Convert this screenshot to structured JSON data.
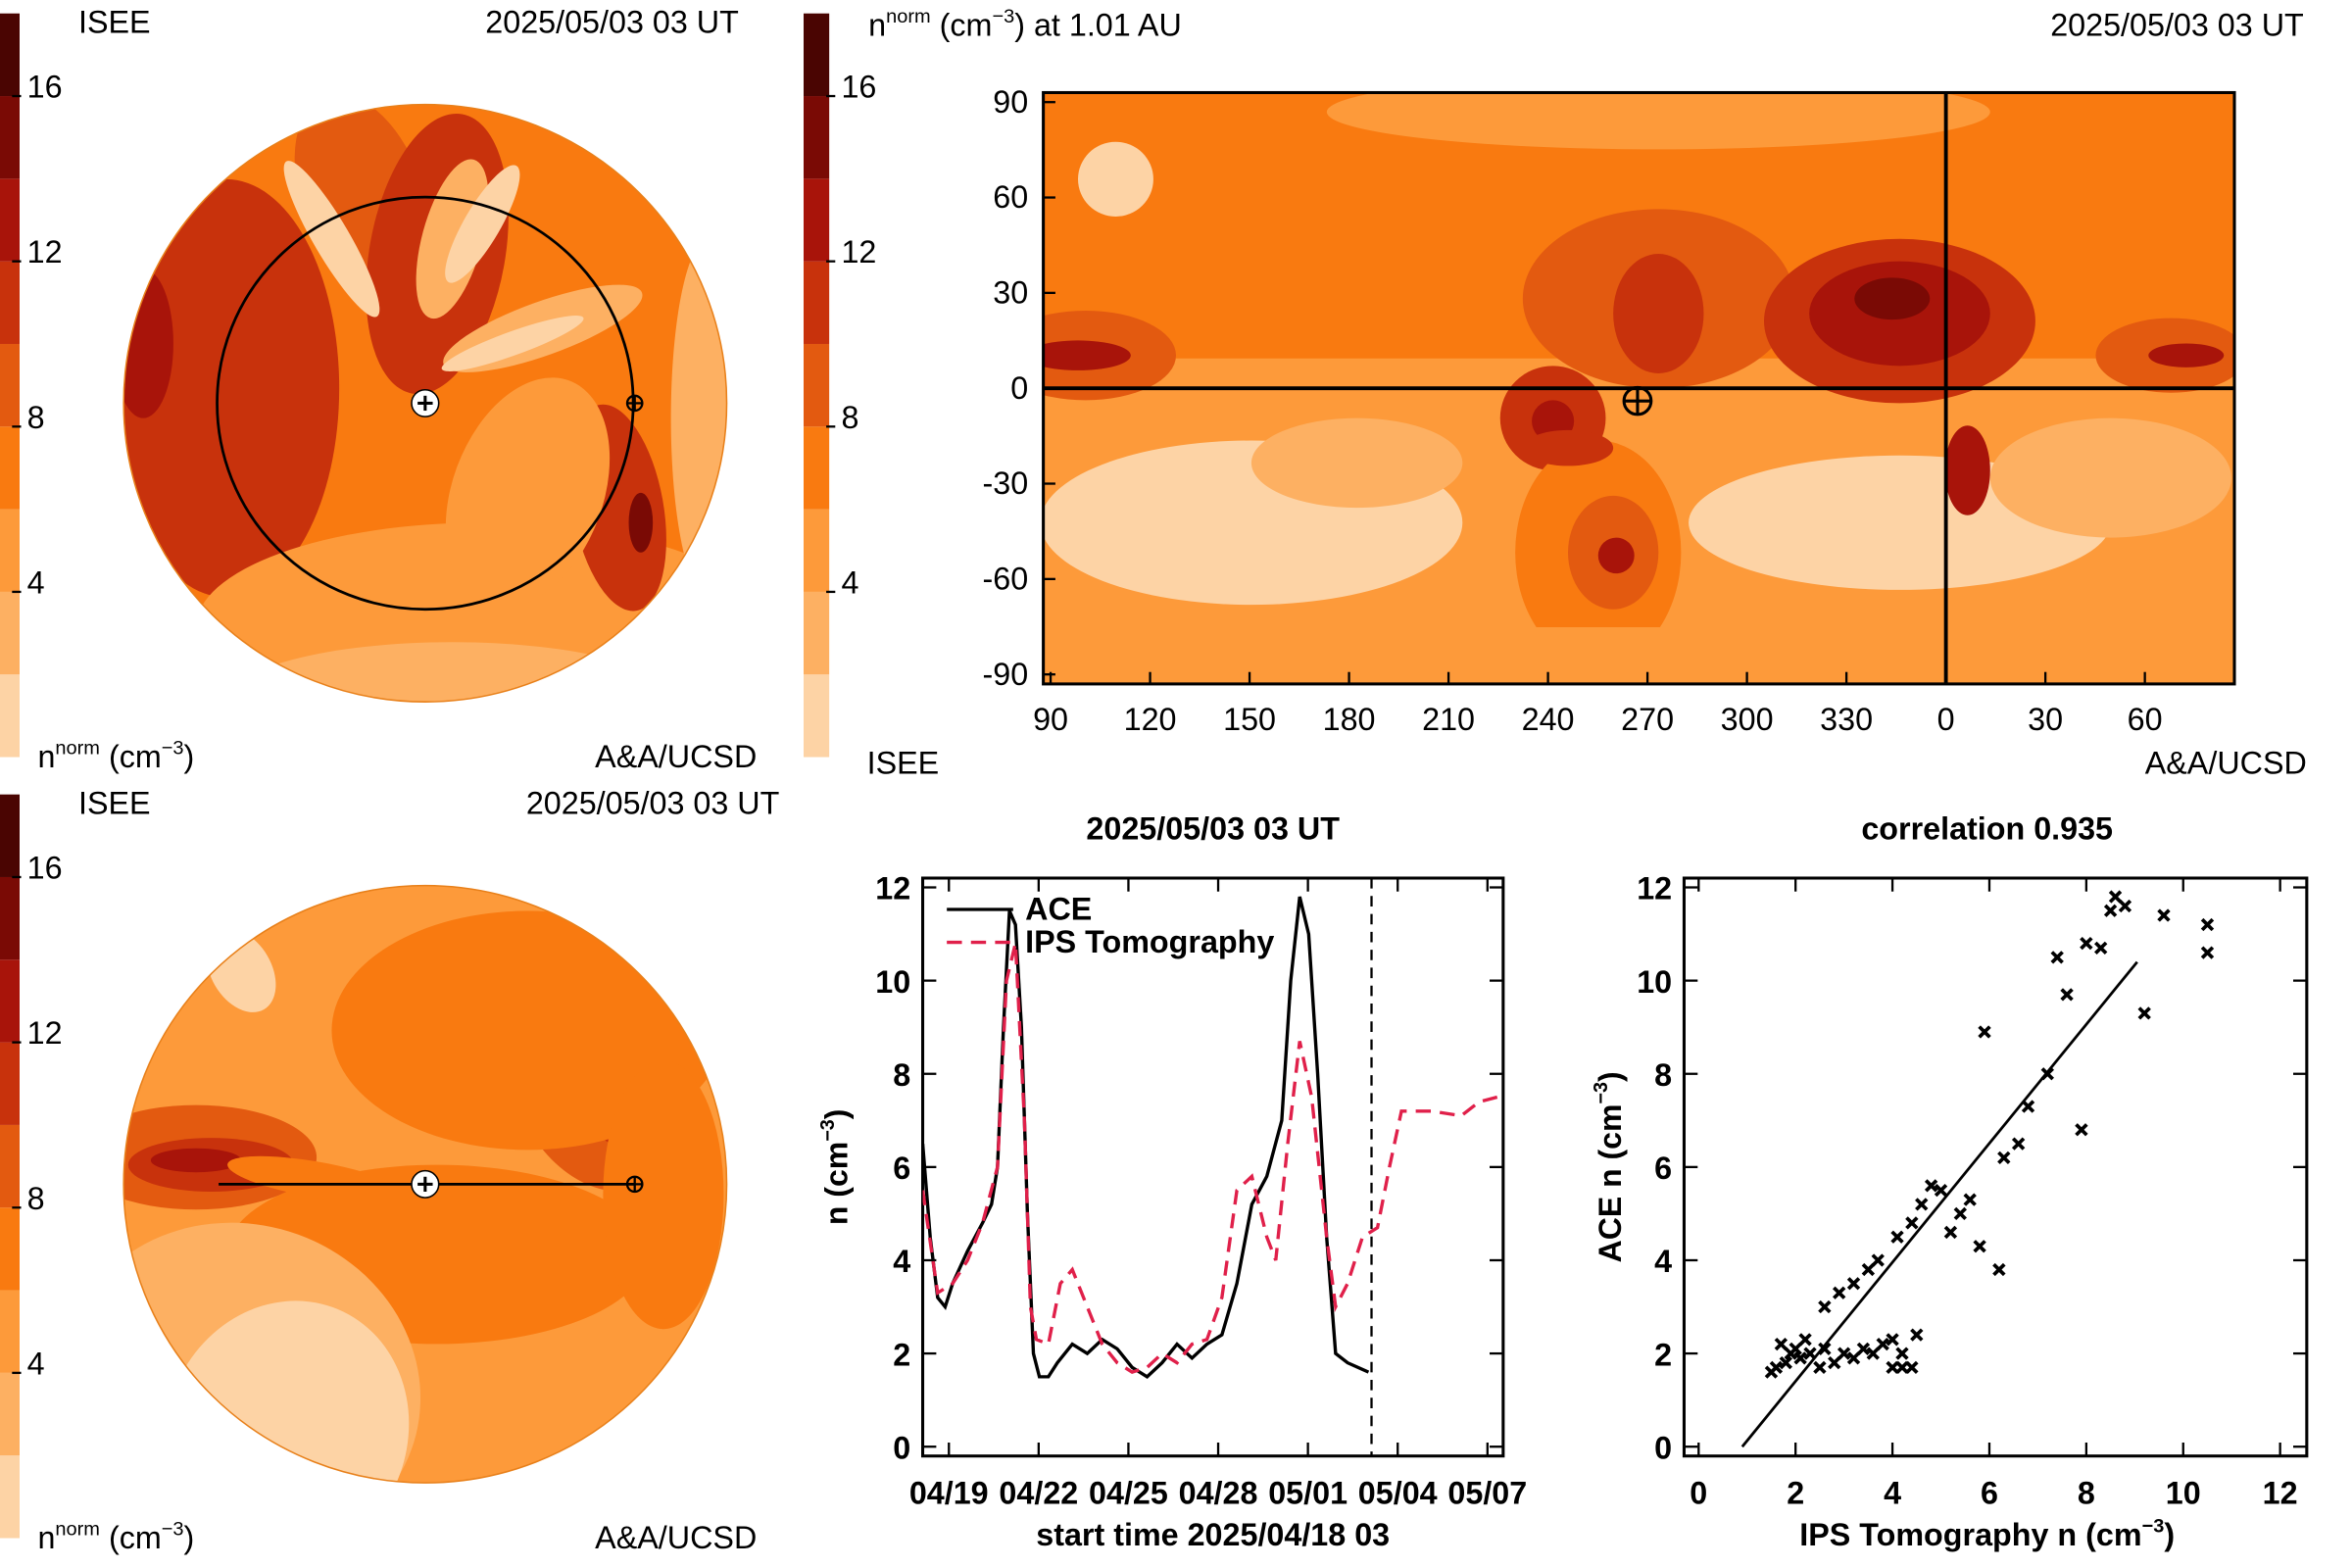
{
  "chart_data": [
    {
      "type": "polar",
      "view": "ecliptic",
      "title_left": "ISEE",
      "time": "2025/05/03 03 UT",
      "colorbar_label": [
        "n",
        "norm",
        " (cm",
        "−3",
        ")"
      ],
      "credit": "A&A/UCSD",
      "clim": [
        0,
        18
      ],
      "levels": [
        0,
        2,
        4,
        6,
        8,
        10,
        12,
        14,
        16,
        18
      ],
      "colors": [
        "#fdd3a5",
        "#fdb062",
        "#fd9a3a",
        "#f97a10",
        "#e35a10",
        "#c8320c",
        "#a8140a",
        "#7a0a05",
        "#4a0502"
      ],
      "cticks": [
        4,
        8,
        12,
        16
      ]
    },
    {
      "type": "map",
      "title": [
        "n",
        "norm",
        " (cm",
        "−3",
        ") at 1.01 AU"
      ],
      "time": "2025/05/03 03 UT",
      "left_credit": "ISEE",
      "credit": "A&A/UCSD",
      "clim": [
        0,
        18
      ],
      "levels": [
        0,
        2,
        4,
        6,
        8,
        10,
        12,
        14,
        16,
        18
      ],
      "colors": [
        "#fdd3a5",
        "#fdb062",
        "#fd9a3a",
        "#f97a10",
        "#e35a10",
        "#c8320c",
        "#a8140a",
        "#7a0a05",
        "#4a0502"
      ],
      "cticks": [
        4,
        8,
        12,
        16
      ],
      "xlim": [
        87.8,
        447
      ],
      "xticks": [
        90,
        120,
        150,
        180,
        210,
        240,
        270,
        300,
        330,
        {
          "value": 360,
          "label": "0"
        },
        {
          "value": 390,
          "label": "30"
        },
        {
          "value": 420,
          "label": "60"
        }
      ],
      "ylim": [
        -93,
        93
      ],
      "yticks": [
        -90,
        -60,
        -30,
        0,
        30,
        60,
        90
      ],
      "earth": {
        "lon": 267,
        "lat": -4
      }
    },
    {
      "type": "polar",
      "view": "meridional",
      "title_left": "ISEE",
      "time": "2025/05/03 03 UT",
      "colorbar_label": [
        "n",
        "norm",
        " (cm",
        "−3",
        ")"
      ],
      "credit": "A&A/UCSD",
      "clim": [
        0,
        18
      ],
      "levels": [
        0,
        2,
        4,
        6,
        8,
        10,
        12,
        14,
        16,
        18
      ],
      "colors": [
        "#fdd3a5",
        "#fdb062",
        "#fd9a3a",
        "#f97a10",
        "#e35a10",
        "#c8320c",
        "#a8140a",
        "#7a0a05",
        "#4a0502"
      ],
      "cticks": [
        4,
        8,
        12,
        16
      ]
    },
    {
      "type": "line",
      "title": "2025/05/03 03 UT",
      "xlabel": "start time 2025/04/18 03",
      "ylabel": [
        "n (cm",
        "−3",
        ")"
      ],
      "xlim": [
        0,
        19.4
      ],
      "xticks": [
        {
          "value": 0.875,
          "label": "04/19"
        },
        {
          "value": 3.875,
          "label": "04/22"
        },
        {
          "value": 6.875,
          "label": "04/25"
        },
        {
          "value": 9.875,
          "label": "04/28"
        },
        {
          "value": 12.875,
          "label": "05/01"
        },
        {
          "value": 15.875,
          "label": "05/04"
        },
        {
          "value": 18.875,
          "label": "05/07"
        }
      ],
      "ylim": [
        -0.2,
        12.2
      ],
      "yticks": [
        0,
        2,
        4,
        6,
        8,
        10,
        12
      ],
      "marker_x": 15,
      "series": [
        {
          "name": "ACE",
          "color": "#000000",
          "dashed": false,
          "x": [
            0,
            0.25,
            0.5,
            0.75,
            1,
            1.5,
            2,
            2.3,
            2.5,
            2.7,
            2.9,
            3.1,
            3.3,
            3.5,
            3.7,
            3.9,
            4.2,
            4.5,
            5,
            5.5,
            6,
            6.5,
            7,
            7.5,
            8,
            8.5,
            9,
            9.5,
            10,
            10.5,
            11,
            11.5,
            12,
            12.3,
            12.6,
            12.9,
            13.2,
            13.5,
            13.8,
            14.2,
            14.9
          ],
          "values": [
            6.5,
            4.5,
            3.2,
            3.0,
            3.5,
            4.2,
            4.8,
            5.2,
            6,
            9,
            11.5,
            11.2,
            9,
            5,
            2,
            1.5,
            1.5,
            1.8,
            2.2,
            2.0,
            2.3,
            2.1,
            1.7,
            1.5,
            1.8,
            2.2,
            1.9,
            2.2,
            2.4,
            3.5,
            5.2,
            5.8,
            7,
            10,
            11.8,
            11,
            8,
            4.5,
            2,
            1.8,
            1.6
          ]
        },
        {
          "name": "IPS Tomography",
          "color": "#e0204a",
          "dashed": true,
          "x": [
            0,
            0.5,
            1,
            1.5,
            2,
            2.5,
            2.8,
            3.1,
            3.4,
            3.6,
            3.8,
            4.2,
            4.6,
            5,
            5.5,
            6,
            6.5,
            7,
            7.5,
            8,
            8.5,
            9,
            9.5,
            10,
            10.5,
            11,
            11.5,
            11.8,
            12.2,
            12.6,
            13,
            13.5,
            13.8,
            14.2,
            14.7,
            15.2,
            15.6,
            16,
            17,
            18,
            18.6,
            19.2
          ],
          "values": [
            5.5,
            3.3,
            3.5,
            4.0,
            4.8,
            6.0,
            10,
            10.8,
            7,
            3,
            2.3,
            2.2,
            3.5,
            3.8,
            3,
            2.2,
            1.8,
            1.6,
            1.7,
            2.0,
            1.8,
            2.2,
            2.3,
            3.2,
            5.5,
            5.8,
            4.5,
            4,
            6.5,
            8.7,
            7.5,
            4.5,
            3,
            3.5,
            4.5,
            4.7,
            6.0,
            7.2,
            7.2,
            7.1,
            7.4,
            7.5
          ]
        }
      ]
    },
    {
      "type": "scatter",
      "title": "correlation 0.935",
      "xlabel": [
        "IPS Tomography n (cm",
        "−3",
        ")"
      ],
      "ylabel": [
        "ACE n (cm",
        "−3",
        ")"
      ],
      "xlim": [
        -0.3,
        12.55
      ],
      "xticks": [
        0,
        2,
        4,
        6,
        8,
        10,
        12
      ],
      "ylim": [
        -0.2,
        12.2
      ],
      "yticks": [
        0,
        2,
        4,
        6,
        8,
        10,
        12
      ],
      "x": [
        1.5,
        1.6,
        1.7,
        1.8,
        1.9,
        2.0,
        2.1,
        2.2,
        2.3,
        2.5,
        2.6,
        2.8,
        3.0,
        3.2,
        3.4,
        3.6,
        3.8,
        4.0,
        4.2,
        4.4,
        4.0,
        2.6,
        2.9,
        3.2,
        3.5,
        3.7,
        4.1,
        4.4,
        4.6,
        4.8,
        5.0,
        5.2,
        5.4,
        5.6,
        5.8,
        6.2,
        5.9,
        6.3,
        6.6,
        6.8,
        7.2,
        7.4,
        7.6,
        7.9,
        8.0,
        8.3,
        8.5,
        8.6,
        8.8,
        9.2,
        9.6,
        10.5,
        10.5,
        4.5,
        4.2
      ],
      "y": [
        1.6,
        1.7,
        2.2,
        1.8,
        2.0,
        2.1,
        1.9,
        2.3,
        2.0,
        1.7,
        2.1,
        1.8,
        2.0,
        1.9,
        2.1,
        2.0,
        2.2,
        1.7,
        1.7,
        1.7,
        2.3,
        3.0,
        3.3,
        3.5,
        3.8,
        4.0,
        4.5,
        4.8,
        5.2,
        5.6,
        5.5,
        4.6,
        5.0,
        5.3,
        4.3,
        3.8,
        8.9,
        6.2,
        6.5,
        7.3,
        8.0,
        10.5,
        9.7,
        6.8,
        10.8,
        10.7,
        11.5,
        11.8,
        11.6,
        9.3,
        11.4,
        10.6,
        11.2,
        2.4,
        2.0
      ],
      "fit": {
        "x": [
          0.9,
          9.05
        ],
        "y": [
          0,
          10.4
        ]
      }
    }
  ]
}
